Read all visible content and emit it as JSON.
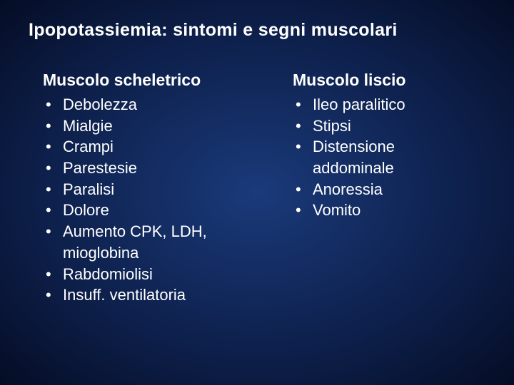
{
  "title": "Ipopotassiemia: sintomi e segni muscolari",
  "left": {
    "heading": "Muscolo scheletrico",
    "items": [
      "Debolezza",
      "Mialgie",
      "Crampi",
      "Parestesie",
      "Paralisi",
      "Dolore",
      "Aumento CPK, LDH, mioglobina",
      "Rabdomiolisi",
      "Insuff. ventilatoria"
    ]
  },
  "right": {
    "heading": "Muscolo liscio",
    "items": [
      "Ileo paralitico",
      "Stipsi",
      "Distensione addominale",
      "Anoressia",
      "Vomito"
    ]
  },
  "colors": {
    "background_center": "#1a3a7a",
    "background_edge": "#050d25",
    "text": "#ffffff"
  },
  "typography": {
    "title_fontsize": 25,
    "subheading_fontsize": 23,
    "item_fontsize": 22,
    "font_family": "Verdana"
  }
}
